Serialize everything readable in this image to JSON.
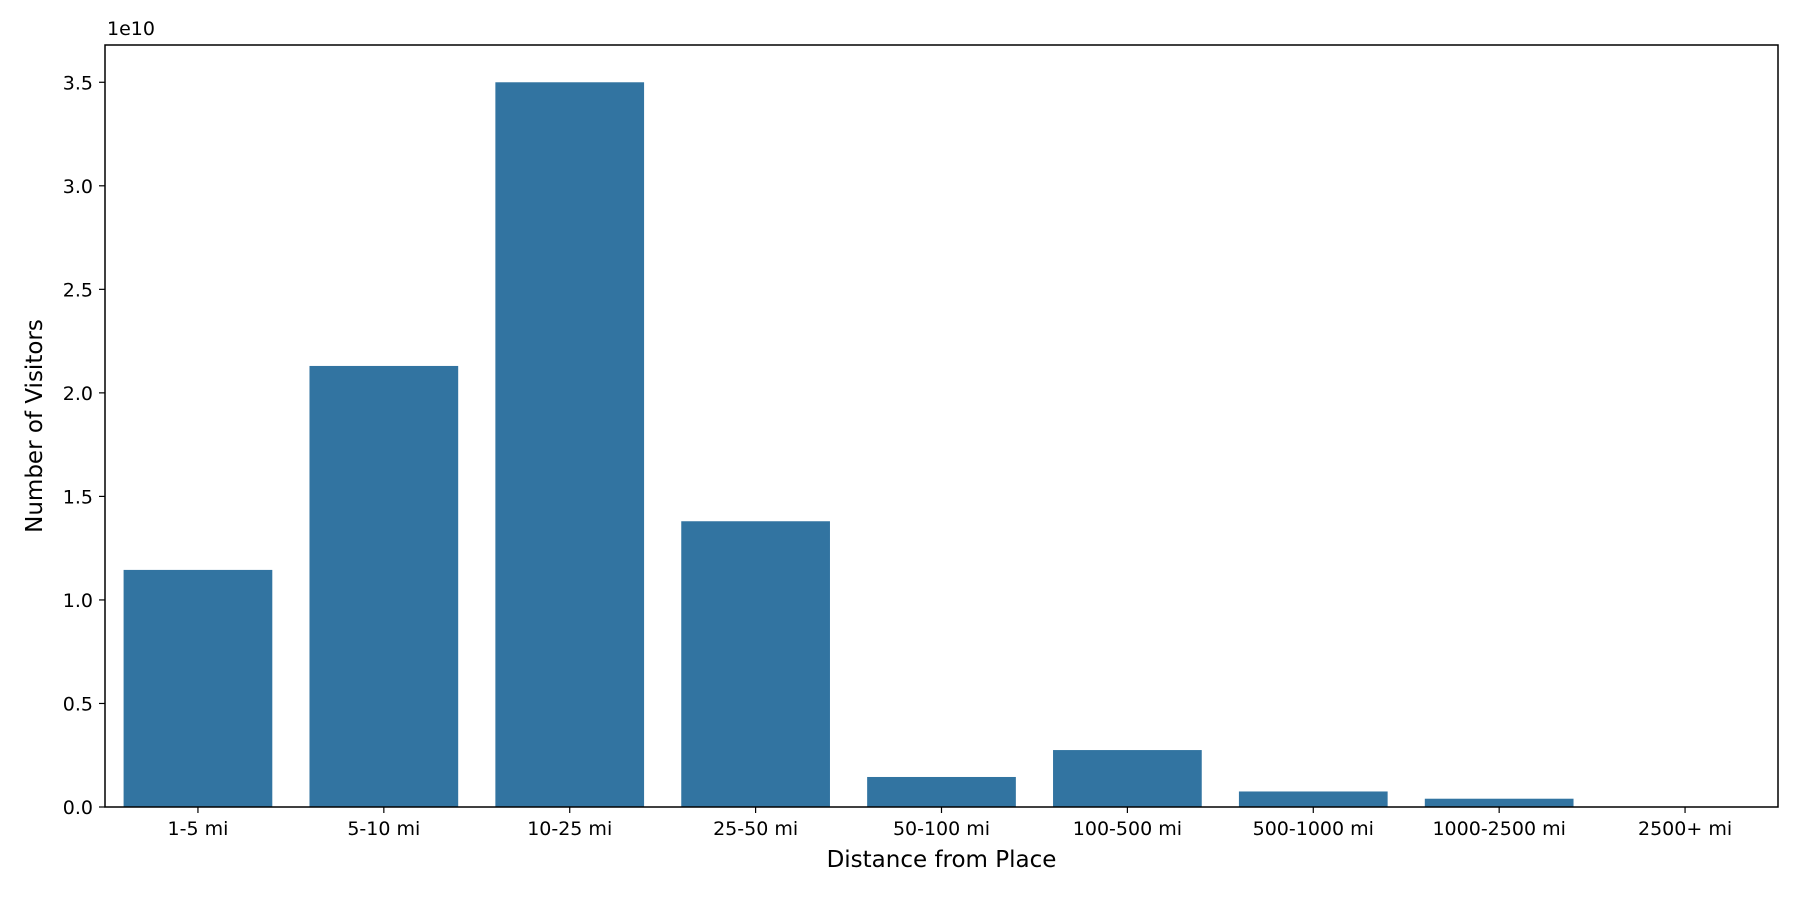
{
  "chart_data": {
    "type": "bar",
    "categories": [
      "1-5 mi",
      "5-10 mi",
      "10-25 mi",
      "25-50 mi",
      "50-100 mi",
      "100-500 mi",
      "500-1000 mi",
      "1000-2500 mi",
      "2500+ mi"
    ],
    "values": [
      11450000000,
      21300000000,
      35000000000,
      13800000000,
      1450000000,
      2750000000,
      750000000,
      400000000,
      0
    ],
    "xlabel": "Distance from Place",
    "ylabel": "Number of Visitors",
    "ylim": [
      0,
      36800000000
    ],
    "yticks": [
      0,
      5000000000,
      10000000000,
      15000000000,
      20000000000,
      25000000000,
      30000000000,
      35000000000
    ],
    "ytick_labels": [
      "0.0",
      "0.5",
      "1.0",
      "1.5",
      "2.0",
      "2.5",
      "3.0",
      "3.5"
    ],
    "y_offset_label": "1e10",
    "bar_color": "#3274a1",
    "grid": false,
    "legend": "none"
  }
}
